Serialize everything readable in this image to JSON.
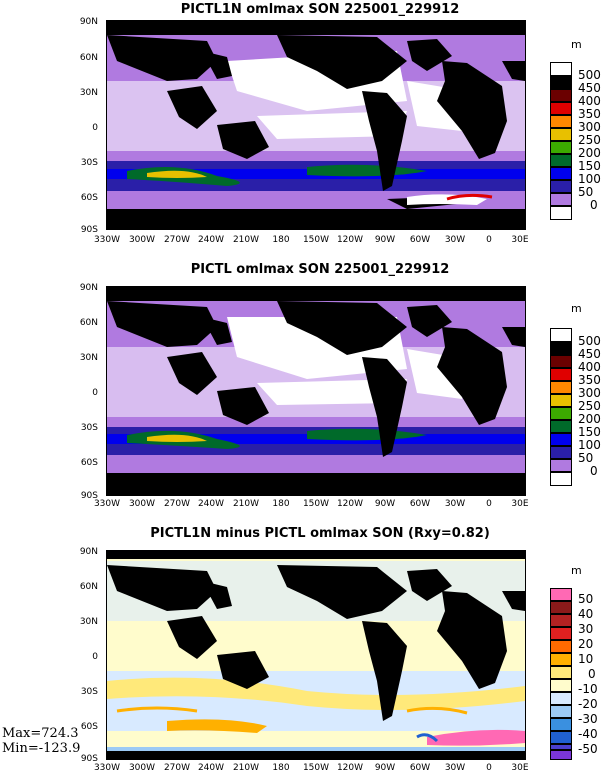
{
  "panels": [
    {
      "title": "PICTL1N omlmax SON 225001_229912",
      "unit": "m",
      "legend_levels": [
        "500",
        "450",
        "400",
        "350",
        "300",
        "250",
        "200",
        "150",
        "100",
        "50",
        "0"
      ],
      "legend_colors": [
        "#ffffff",
        "#000000",
        "#6b0000",
        "#e00000",
        "#ff8800",
        "#e8c000",
        "#3caa00",
        "#006a2a",
        "#0000ee",
        "#2a1fa8",
        "#b07ae0",
        "#ffffff"
      ]
    },
    {
      "title": "PICTL omlmax SON 225001_229912",
      "unit": "m",
      "legend_levels": [
        "500",
        "450",
        "400",
        "350",
        "300",
        "250",
        "200",
        "150",
        "100",
        "50",
        "0"
      ],
      "legend_colors": [
        "#ffffff",
        "#000000",
        "#6b0000",
        "#e00000",
        "#ff8800",
        "#e8c000",
        "#3caa00",
        "#006a2a",
        "#0000ee",
        "#2a1fa8",
        "#b07ae0",
        "#ffffff"
      ]
    },
    {
      "title": "PICTL1N minus PICTL omlmax SON (Rxy=0.82)",
      "unit": "m",
      "legend_levels": [
        "50",
        "40",
        "30",
        "20",
        "10",
        "0",
        "-10",
        "-20",
        "-30",
        "-40",
        "-50"
      ],
      "legend_colors": [
        "#ff69b4",
        "#8b1a1a",
        "#b22222",
        "#e02020",
        "#ff6a00",
        "#ffb000",
        "#ffe97a",
        "#fffccc",
        "#d8eaff",
        "#9ccaf5",
        "#3a90e0",
        "#2060d0",
        "#4a3fcc",
        "#7a36d8"
      ]
    }
  ],
  "lat_labels": [
    "90N",
    "60N",
    "30N",
    "0",
    "30S",
    "60S",
    "90S"
  ],
  "lon_labels": [
    "330W",
    "300W",
    "270W",
    "240W",
    "210W",
    "180",
    "150W",
    "120W",
    "90W",
    "60W",
    "30W",
    "0",
    "30E"
  ],
  "stats": {
    "max": "Max=724.3",
    "min": "Min=-123.9"
  }
}
